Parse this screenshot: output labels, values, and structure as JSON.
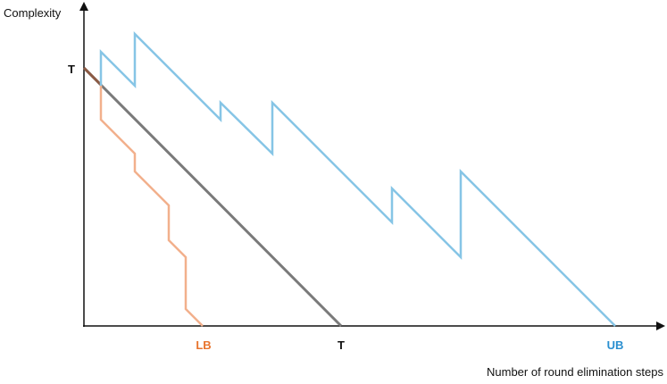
{
  "y_axis": {
    "label": "Complexity",
    "tick": "T"
  },
  "x_axis": {
    "label": "Number of round elimination steps",
    "ticks": [
      "LB",
      "T",
      "UB"
    ]
  }
}
